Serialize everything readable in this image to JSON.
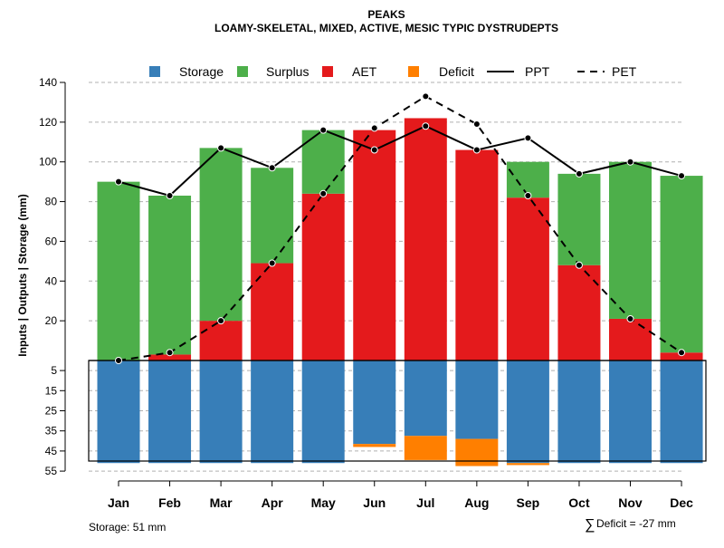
{
  "chart_data": {
    "type": "bar",
    "title": "PEAKS",
    "subtitle": "LOAMY-SKELETAL, MIXED, ACTIVE, MESIC TYPIC DYSTRUDEPTS",
    "ylabel": "Inputs | Outputs | Storage    (mm)",
    "ylim_upper": [
      0,
      140
    ],
    "ylim_lower": [
      0,
      55
    ],
    "upper_ticks": [
      20,
      40,
      60,
      80,
      100,
      120,
      140
    ],
    "lower_ticks": [
      5,
      15,
      25,
      35,
      45,
      55
    ],
    "categories": [
      "Jan",
      "Feb",
      "Mar",
      "Apr",
      "May",
      "Jun",
      "Jul",
      "Aug",
      "Sep",
      "Oct",
      "Nov",
      "Dec"
    ],
    "legend": [
      {
        "key": "storage",
        "label": "Storage",
        "kind": "box",
        "color": "#377EB8"
      },
      {
        "key": "surplus",
        "label": "Surplus",
        "kind": "box",
        "color": "#4DAF4A"
      },
      {
        "key": "aet",
        "label": "AET",
        "kind": "box",
        "color": "#E41A1C"
      },
      {
        "key": "deficit",
        "label": "Deficit",
        "kind": "box",
        "color": "#FF7F00"
      },
      {
        "key": "ppt",
        "label": "PPT",
        "kind": "solid",
        "color": "#000000"
      },
      {
        "key": "pet",
        "label": "PET",
        "kind": "dashed",
        "color": "#000000"
      }
    ],
    "series": [
      {
        "name": "AET",
        "values": [
          0,
          3,
          20,
          49,
          84,
          116,
          122,
          106,
          82,
          48,
          21,
          4
        ]
      },
      {
        "name": "Surplus",
        "values": [
          90,
          80,
          87,
          48,
          32,
          0,
          0,
          0,
          18,
          46,
          79,
          89
        ]
      },
      {
        "name": "Storage",
        "values": [
          51,
          51,
          51,
          51,
          51,
          41.5,
          37.5,
          39,
          51,
          51,
          51,
          51
        ]
      },
      {
        "name": "Deficit",
        "values": [
          0,
          0,
          0,
          0,
          0,
          1.5,
          12,
          13.5,
          1,
          0,
          0,
          0
        ]
      },
      {
        "name": "PPT",
        "values": [
          90,
          83,
          107,
          97,
          116,
          106,
          118,
          106,
          112,
          94,
          100,
          93
        ]
      },
      {
        "name": "PET",
        "values": [
          0,
          4,
          20,
          49,
          84,
          117,
          133,
          119,
          83,
          48,
          21,
          4
        ]
      }
    ],
    "storage_note": "Storage: 51 mm",
    "deficit_note": "Deficit = -27 mm",
    "deficit_symbol": "∑"
  }
}
